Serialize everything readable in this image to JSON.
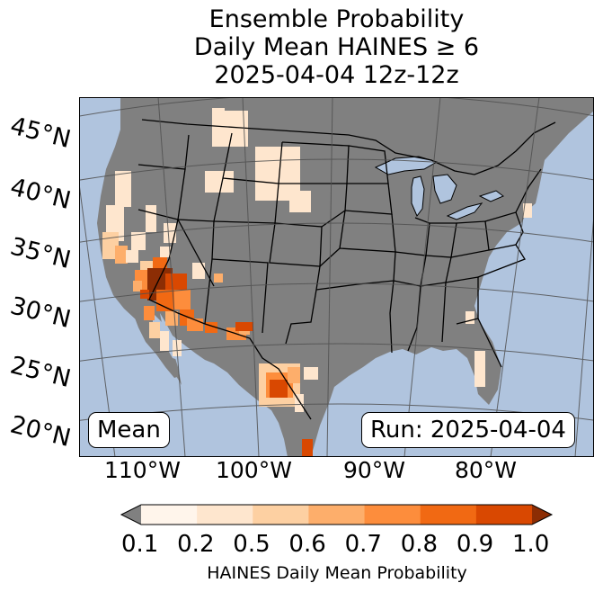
{
  "title": {
    "line1": "Ensemble Probability",
    "line2": "Daily Mean HAINES ≥ 6",
    "line3": "2025-04-04 12z-12z"
  },
  "map": {
    "region": "Continental United States",
    "ocean_color": "#b0c4de",
    "land_color": "#808080",
    "graticule_color": "#505050",
    "latitude_labels": [
      "45°N",
      "40°N",
      "35°N",
      "30°N",
      "25°N",
      "20°N"
    ],
    "longitude_labels": [
      "110°W",
      "100°W",
      "90°W",
      "80°W"
    ],
    "mean_label": "Mean",
    "run_label": "Run: 2025-04-04"
  },
  "colorbar": {
    "ticks": [
      "0.1",
      "0.2",
      "0.5",
      "0.6",
      "0.7",
      "0.8",
      "0.9",
      "1.0"
    ],
    "colors": [
      "#fff5eb",
      "#fee6ce",
      "#fdd0a2",
      "#fdae6b",
      "#fd8d3c",
      "#f16913",
      "#d94801",
      "#8c2d04"
    ],
    "under_color": "#808080",
    "label": "HAINES Daily Mean Probability"
  }
}
